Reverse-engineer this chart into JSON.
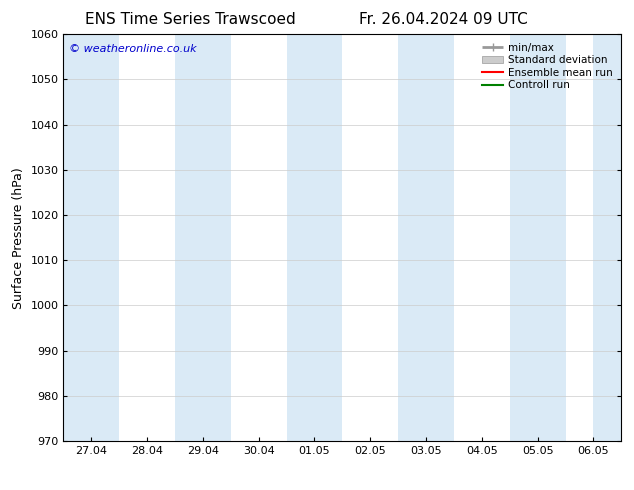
{
  "title_left": "ENS Time Series Trawscoed",
  "title_right": "Fr. 26.04.2024 09 UTC",
  "ylabel": "Surface Pressure (hPa)",
  "ylim": [
    970,
    1060
  ],
  "yticks": [
    970,
    980,
    990,
    1000,
    1010,
    1020,
    1030,
    1040,
    1050,
    1060
  ],
  "xtick_labels": [
    "27.04",
    "28.04",
    "29.04",
    "30.04",
    "01.05",
    "02.05",
    "03.05",
    "04.05",
    "05.05",
    "06.05"
  ],
  "xtick_positions": [
    0,
    1,
    2,
    3,
    4,
    5,
    6,
    7,
    8,
    9
  ],
  "xlim": [
    -0.5,
    9.5
  ],
  "shaded_bands": [
    {
      "x_start": -0.5,
      "x_end": 0.5
    },
    {
      "x_start": 1.5,
      "x_end": 2.5
    },
    {
      "x_start": 3.5,
      "x_end": 4.5
    },
    {
      "x_start": 5.5,
      "x_end": 6.5
    },
    {
      "x_start": 7.5,
      "x_end": 8.5
    },
    {
      "x_start": 9.0,
      "x_end": 9.5
    }
  ],
  "shaded_color": "#daeaf6",
  "background_color": "#ffffff",
  "plot_bg_color": "#ffffff",
  "watermark_text": "© weatheronline.co.uk",
  "watermark_color": "#0000cc",
  "legend_entries": [
    {
      "label": "min/max",
      "color": "#999999",
      "lw": 2,
      "type": "line"
    },
    {
      "label": "Standard deviation",
      "color": "#cccccc",
      "lw": 8,
      "type": "fill"
    },
    {
      "label": "Ensemble mean run",
      "color": "#ff0000",
      "lw": 1.5,
      "type": "line"
    },
    {
      "label": "Controll run",
      "color": "#008000",
      "lw": 1.5,
      "type": "line"
    }
  ],
  "title_fontsize": 11,
  "axis_label_fontsize": 9,
  "tick_fontsize": 8,
  "legend_fontsize": 7.5,
  "watermark_fontsize": 8
}
